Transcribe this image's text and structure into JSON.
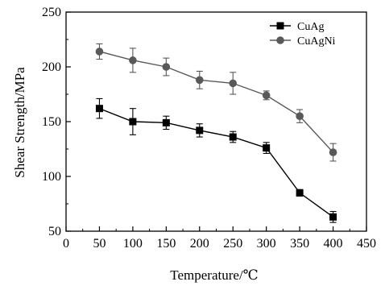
{
  "chart_data": {
    "type": "line",
    "title": "",
    "xlabel": "Temperature/℃",
    "ylabel": "Shear Strength/MPa",
    "xlim": [
      0,
      450
    ],
    "ylim": [
      50,
      250
    ],
    "x_ticks": [
      0,
      50,
      100,
      150,
      200,
      250,
      300,
      350,
      400,
      450
    ],
    "y_ticks": [
      50,
      100,
      150,
      200,
      250
    ],
    "grid": false,
    "legend_position": "top-right",
    "x": [
      50,
      100,
      150,
      200,
      250,
      300,
      350,
      400
    ],
    "series": [
      {
        "name": "CuAg",
        "marker": "square",
        "color": "#000000",
        "values": [
          162,
          150,
          149,
          142,
          136,
          126,
          85,
          63
        ],
        "errors": [
          9,
          12,
          6,
          6,
          5,
          5,
          3,
          5
        ]
      },
      {
        "name": "CuAgNi",
        "marker": "circle",
        "color": "#595959",
        "values": [
          214,
          206,
          200,
          188,
          185,
          174,
          155,
          122
        ],
        "errors": [
          7,
          11,
          8,
          8,
          10,
          4,
          6,
          8
        ]
      }
    ]
  }
}
